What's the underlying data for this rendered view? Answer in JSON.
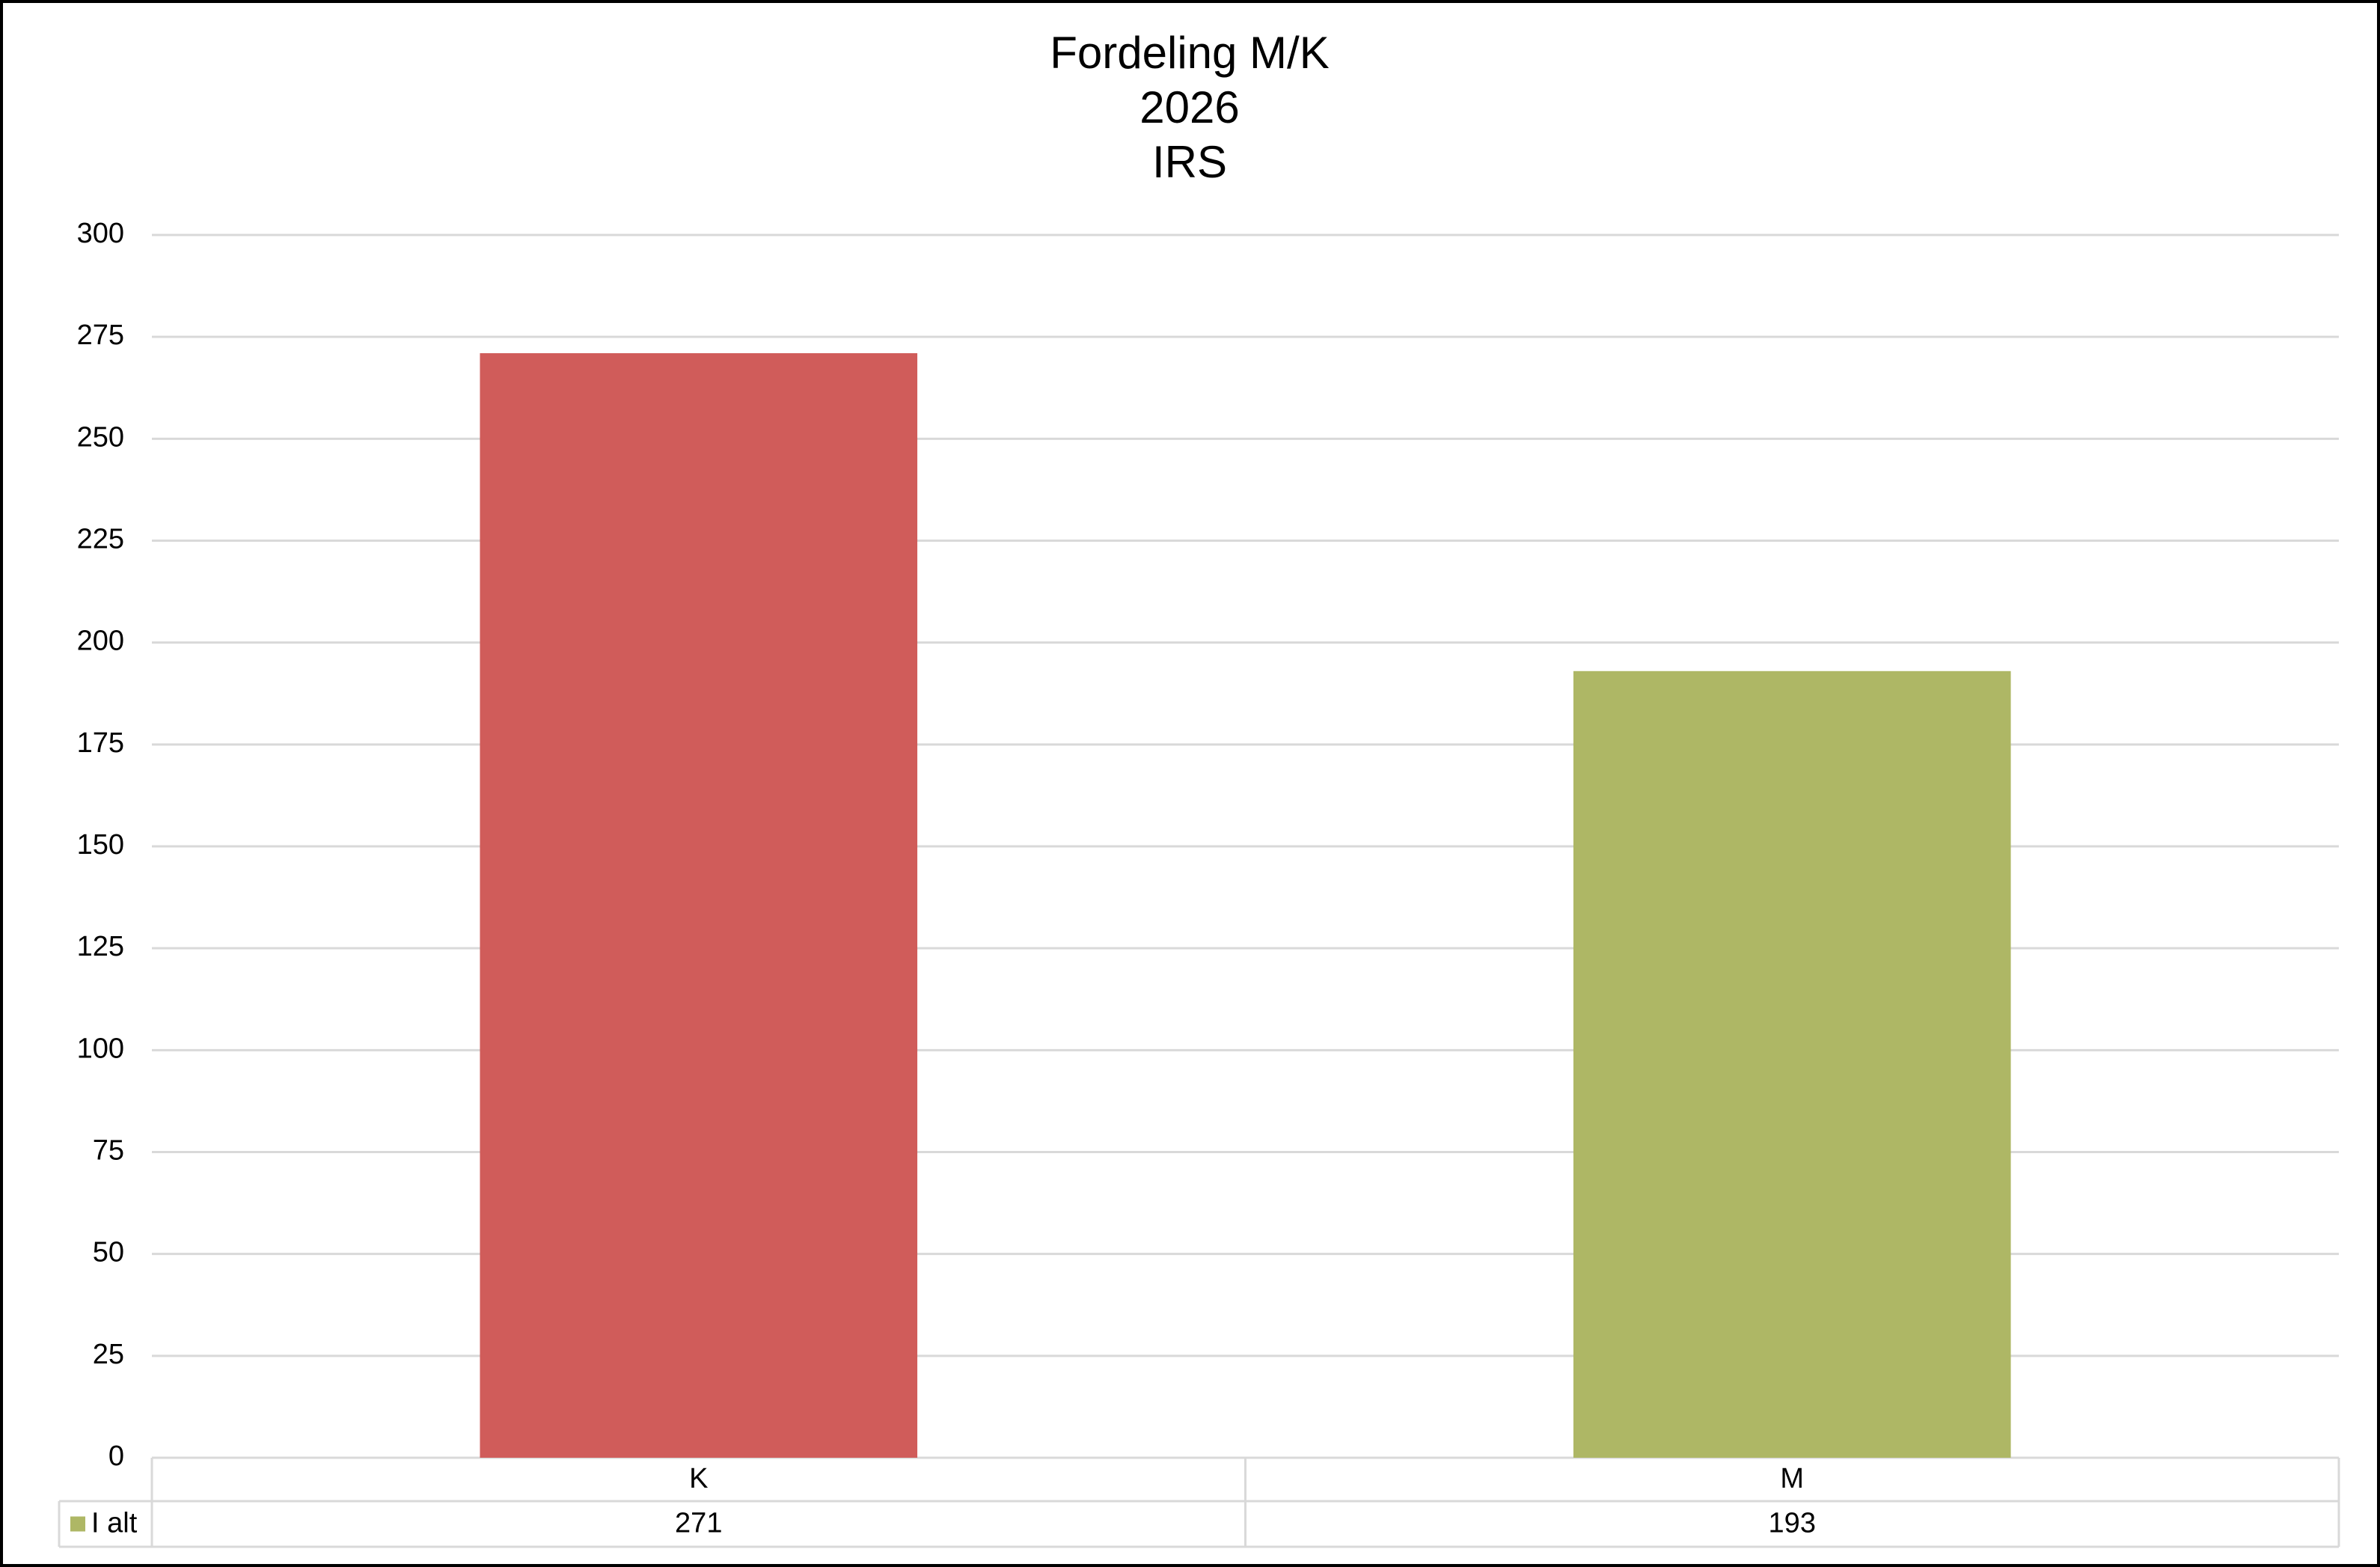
{
  "chart_data": {
    "type": "bar",
    "title": [
      "Fordeling M/K",
      "2026",
      "IRS"
    ],
    "categories": [
      "K",
      "M"
    ],
    "series": [
      {
        "name": "I alt",
        "color": "#aeb765",
        "colors": [
          "#d05c5a",
          "#aeb765"
        ],
        "values": [
          271,
          193
        ]
      }
    ],
    "ylim": [
      0,
      300
    ],
    "yticks": [
      0,
      25,
      50,
      75,
      100,
      125,
      150,
      175,
      200,
      225,
      250,
      275,
      300
    ],
    "grid": true,
    "data_table": true
  }
}
